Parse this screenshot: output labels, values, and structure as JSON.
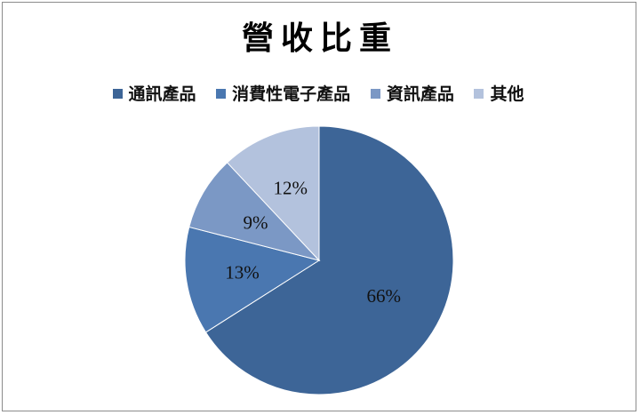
{
  "chart_data": {
    "type": "pie",
    "title": "營收比重",
    "categories": [
      "通訊產品",
      "消費性電子產品",
      "資訊產品",
      "其他"
    ],
    "values": [
      66,
      13,
      9,
      12
    ],
    "labels": [
      "66%",
      "13%",
      "9%",
      "12%"
    ],
    "colors": [
      "#3d6597",
      "#4a77b0",
      "#7b98c5",
      "#b3c2dd"
    ],
    "legend_position": "top"
  }
}
